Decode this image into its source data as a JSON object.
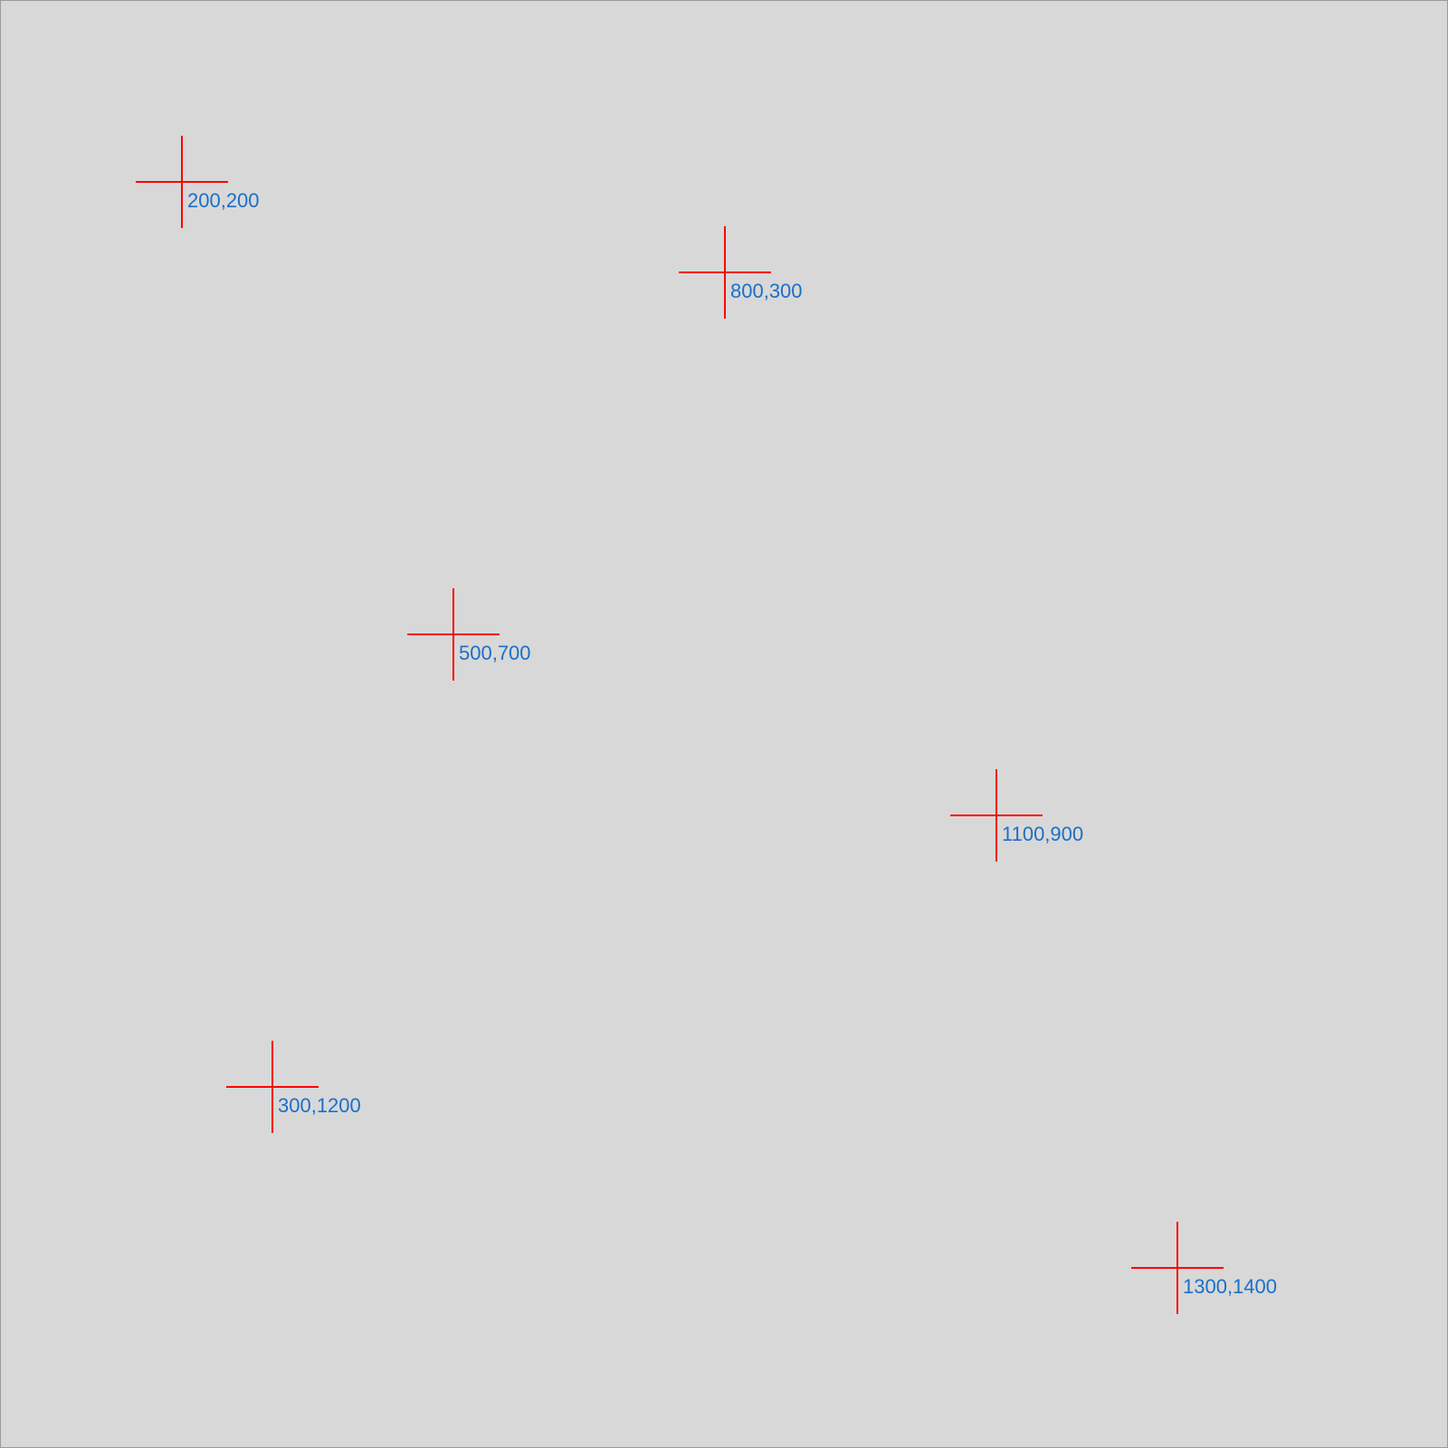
{
  "colors": {
    "background": "#d8d8d8",
    "border": "#9a9a9a",
    "crosshair": "#ff0000",
    "label": "#1a6fc9"
  },
  "markers": [
    {
      "icon": "crosshair-icon",
      "label": "200,200"
    },
    {
      "icon": "crosshair-icon",
      "label": "800,300"
    },
    {
      "icon": "crosshair-icon",
      "label": "500,700"
    },
    {
      "icon": "crosshair-icon",
      "label": "1100,900"
    },
    {
      "icon": "crosshair-icon",
      "label": "300,1200"
    },
    {
      "icon": "crosshair-icon",
      "label": "1300,1400"
    }
  ]
}
